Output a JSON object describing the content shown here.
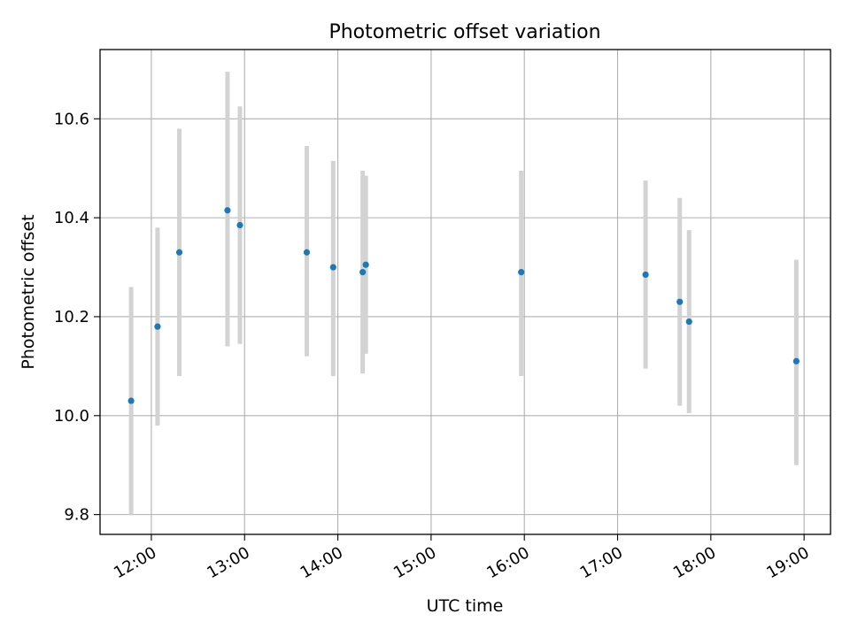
{
  "chart_data": {
    "type": "scatter",
    "title": "Photometric offset variation",
    "xlabel": "UTC time",
    "ylabel": "Photometric offset",
    "x_axis_type": "time",
    "xlim": [
      "11:27",
      "19:17"
    ],
    "ylim": [
      9.76,
      10.74
    ],
    "grid": true,
    "x_ticks": [
      "12:00",
      "13:00",
      "14:00",
      "15:00",
      "16:00",
      "17:00",
      "18:00",
      "19:00"
    ],
    "y_ticks": [
      "9.8",
      "10.0",
      "10.2",
      "10.4",
      "10.6"
    ],
    "colors": {
      "point": "#1f77b4",
      "errorbar": "#d3d3d3",
      "grid": "#b0b0b0"
    },
    "points": [
      {
        "x": "11:47",
        "y": 10.03,
        "yerr_low": 9.8,
        "yerr_high": 10.26
      },
      {
        "x": "12:04",
        "y": 10.18,
        "yerr_low": 9.98,
        "yerr_high": 10.38
      },
      {
        "x": "12:18",
        "y": 10.33,
        "yerr_low": 10.08,
        "yerr_high": 10.58
      },
      {
        "x": "12:49",
        "y": 10.415,
        "yerr_low": 10.14,
        "yerr_high": 10.695
      },
      {
        "x": "12:57",
        "y": 10.385,
        "yerr_low": 10.145,
        "yerr_high": 10.625
      },
      {
        "x": "13:40",
        "y": 10.33,
        "yerr_low": 10.12,
        "yerr_high": 10.545
      },
      {
        "x": "13:57",
        "y": 10.3,
        "yerr_low": 10.08,
        "yerr_high": 10.515
      },
      {
        "x": "14:16",
        "y": 10.29,
        "yerr_low": 10.085,
        "yerr_high": 10.495
      },
      {
        "x": "14:18",
        "y": 10.305,
        "yerr_low": 10.125,
        "yerr_high": 10.485
      },
      {
        "x": "15:58",
        "y": 10.29,
        "yerr_low": 10.08,
        "yerr_high": 10.495
      },
      {
        "x": "17:18",
        "y": 10.285,
        "yerr_low": 10.095,
        "yerr_high": 10.475
      },
      {
        "x": "17:40",
        "y": 10.23,
        "yerr_low": 10.02,
        "yerr_high": 10.44
      },
      {
        "x": "17:46",
        "y": 10.19,
        "yerr_low": 10.005,
        "yerr_high": 10.375
      },
      {
        "x": "18:55",
        "y": 10.11,
        "yerr_low": 9.9,
        "yerr_high": 10.315
      }
    ]
  }
}
